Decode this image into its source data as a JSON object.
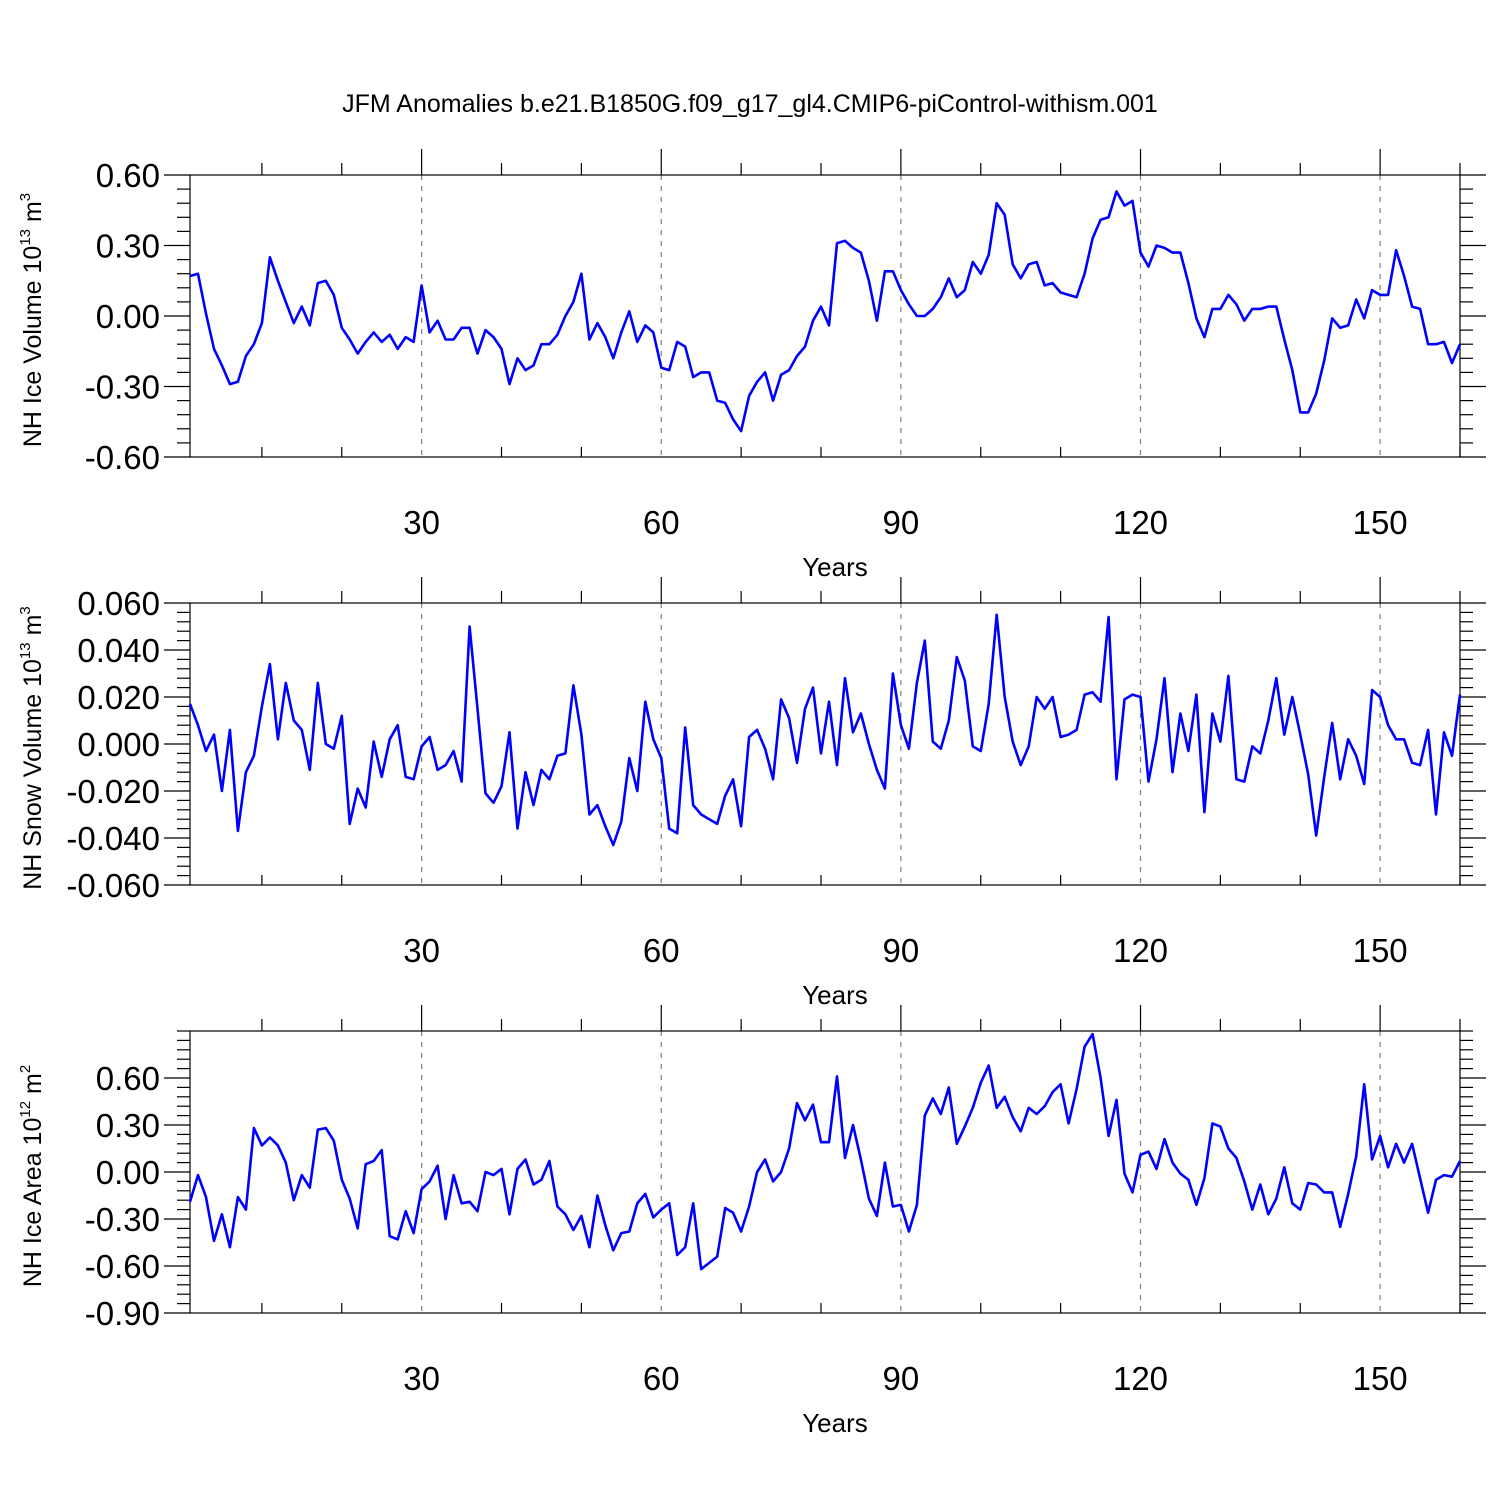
{
  "title": "JFM Anomalies b.e21.B1850G.f09_g17_gl4.CMIP6-piControl-withism.001",
  "colors": {
    "line": "#0000ff",
    "axis": "#000000",
    "grid": "#808080"
  },
  "chart_data": [
    {
      "type": "line",
      "name": "ice-volume",
      "ylabel_main": "NH Ice Volume 10",
      "ylabel_exp": "13",
      "ylabel_unit": " m",
      "ylabel_unit_exp": "3",
      "xlabel": "Years",
      "xlim": [
        1,
        160
      ],
      "ylim": [
        -0.6,
        0.6
      ],
      "xticks": [
        30,
        60,
        90,
        120,
        150
      ],
      "xtick_labels": [
        "30",
        "60",
        "90",
        "120",
        "150"
      ],
      "yticks": [
        -0.6,
        -0.3,
        0.0,
        0.3,
        0.6
      ],
      "ytick_labels": [
        "-0.60",
        "-0.30",
        "0.00",
        "0.30",
        "0.60"
      ],
      "yminor_step": 0.06,
      "values": [
        0.17,
        0.18,
        0.01,
        -0.14,
        -0.21,
        -0.29,
        -0.28,
        -0.17,
        -0.12,
        -0.03,
        0.25,
        0.15,
        0.06,
        -0.03,
        0.04,
        -0.04,
        0.14,
        0.15,
        0.09,
        -0.05,
        -0.1,
        -0.16,
        -0.11,
        -0.07,
        -0.11,
        -0.08,
        -0.14,
        -0.09,
        -0.11,
        0.13,
        -0.07,
        -0.02,
        -0.1,
        -0.1,
        -0.05,
        -0.05,
        -0.16,
        -0.06,
        -0.09,
        -0.14,
        -0.29,
        -0.18,
        -0.23,
        -0.21,
        -0.12,
        -0.12,
        -0.08,
        0.0,
        0.06,
        0.18,
        -0.1,
        -0.03,
        -0.09,
        -0.18,
        -0.07,
        0.02,
        -0.11,
        -0.04,
        -0.07,
        -0.22,
        -0.23,
        -0.11,
        -0.13,
        -0.26,
        -0.24,
        -0.24,
        -0.36,
        -0.37,
        -0.44,
        -0.49,
        -0.34,
        -0.28,
        -0.24,
        -0.36,
        -0.25,
        -0.23,
        -0.17,
        -0.13,
        -0.02,
        0.04,
        -0.04,
        0.31,
        0.32,
        0.29,
        0.27,
        0.15,
        -0.02,
        0.19,
        0.19,
        0.11,
        0.05,
        0.0,
        0.0,
        0.03,
        0.08,
        0.16,
        0.08,
        0.11,
        0.23,
        0.18,
        0.26,
        0.48,
        0.43,
        0.22,
        0.16,
        0.22,
        0.23,
        0.13,
        0.14,
        0.1,
        0.09,
        0.08,
        0.18,
        0.33,
        0.41,
        0.42,
        0.53,
        0.47,
        0.49,
        0.27,
        0.21,
        0.3,
        0.29,
        0.27,
        0.27,
        0.14,
        -0.01,
        -0.09,
        0.03,
        0.03,
        0.09,
        0.05,
        -0.02,
        0.03,
        0.03,
        0.04,
        0.04,
        -0.1,
        -0.23,
        -0.41,
        -0.41,
        -0.33,
        -0.19,
        -0.01,
        -0.05,
        -0.04,
        0.07,
        -0.01,
        0.11,
        0.09,
        0.09,
        0.28,
        0.17,
        0.04,
        0.03,
        -0.12,
        -0.12,
        -0.11,
        -0.2,
        -0.12
      ]
    },
    {
      "type": "line",
      "name": "snow-volume",
      "ylabel_main": "NH Snow Volume 10",
      "ylabel_exp": "13",
      "ylabel_unit": " m",
      "ylabel_unit_exp": "3",
      "xlabel": "Years",
      "xlim": [
        1,
        160
      ],
      "ylim": [
        -0.06,
        0.06
      ],
      "xticks": [
        30,
        60,
        90,
        120,
        150
      ],
      "xtick_labels": [
        "30",
        "60",
        "90",
        "120",
        "150"
      ],
      "yticks": [
        -0.06,
        -0.04,
        -0.02,
        0.0,
        0.02,
        0.04,
        0.06
      ],
      "ytick_labels": [
        "-0.060",
        "-0.040",
        "-0.020",
        "0.000",
        "0.020",
        "0.040",
        "0.060"
      ],
      "yminor_step": 0.004,
      "values": [
        0.017,
        0.008,
        -0.003,
        0.004,
        -0.02,
        0.006,
        -0.037,
        -0.012,
        -0.005,
        0.016,
        0.034,
        0.002,
        0.026,
        0.01,
        0.006,
        -0.011,
        0.026,
        0.0,
        -0.002,
        0.012,
        -0.034,
        -0.019,
        -0.027,
        0.001,
        -0.014,
        0.002,
        0.008,
        -0.014,
        -0.015,
        -0.001,
        0.003,
        -0.011,
        -0.009,
        -0.003,
        -0.016,
        0.05,
        0.015,
        -0.021,
        -0.025,
        -0.018,
        0.005,
        -0.036,
        -0.012,
        -0.026,
        -0.011,
        -0.015,
        -0.005,
        -0.004,
        0.025,
        0.004,
        -0.03,
        -0.026,
        -0.035,
        -0.043,
        -0.033,
        -0.006,
        -0.02,
        0.018,
        0.002,
        -0.006,
        -0.036,
        -0.038,
        0.007,
        -0.026,
        -0.03,
        -0.032,
        -0.034,
        -0.022,
        -0.015,
        -0.035,
        0.003,
        0.006,
        -0.002,
        -0.015,
        0.019,
        0.011,
        -0.008,
        0.015,
        0.024,
        -0.004,
        0.018,
        -0.009,
        0.028,
        0.005,
        0.013,
        0.0,
        -0.011,
        -0.019,
        0.03,
        0.008,
        -0.002,
        0.026,
        0.044,
        0.001,
        -0.002,
        0.01,
        0.037,
        0.027,
        -0.001,
        -0.003,
        0.017,
        0.055,
        0.02,
        0.001,
        -0.009,
        -0.001,
        0.02,
        0.015,
        0.02,
        0.003,
        0.004,
        0.006,
        0.021,
        0.022,
        0.018,
        0.054,
        -0.015,
        0.019,
        0.021,
        0.02,
        -0.016,
        0.002,
        0.028,
        -0.012,
        0.013,
        -0.003,
        0.021,
        -0.029,
        0.013,
        0.001,
        0.029,
        -0.015,
        -0.016,
        -0.001,
        -0.004,
        0.01,
        0.028,
        0.004,
        0.02,
        0.004,
        -0.013,
        -0.039,
        -0.014,
        0.009,
        -0.015,
        0.002,
        -0.005,
        -0.017,
        0.023,
        0.02,
        0.008,
        0.002,
        0.002,
        -0.008,
        -0.009,
        0.006,
        -0.03,
        0.005,
        -0.005,
        0.021
      ]
    },
    {
      "type": "line",
      "name": "ice-area",
      "ylabel_main": "NH Ice Area 10",
      "ylabel_exp": "12",
      "ylabel_unit": " m",
      "ylabel_unit_exp": "2",
      "xlabel": "Years",
      "xlim": [
        1,
        160
      ],
      "ylim": [
        -0.9,
        0.9
      ],
      "xticks": [
        30,
        60,
        90,
        120,
        150
      ],
      "xtick_labels": [
        "30",
        "60",
        "90",
        "120",
        "150"
      ],
      "yticks": [
        -0.9,
        -0.6,
        -0.3,
        0.0,
        0.3,
        0.6
      ],
      "ytick_labels": [
        "-0.90",
        "-0.60",
        "-0.30",
        "0.00",
        "0.30",
        "0.60"
      ],
      "yminor_step": 0.06,
      "values": [
        -0.19,
        -0.02,
        -0.16,
        -0.44,
        -0.27,
        -0.48,
        -0.16,
        -0.24,
        0.28,
        0.17,
        0.22,
        0.17,
        0.06,
        -0.18,
        -0.02,
        -0.1,
        0.27,
        0.28,
        0.2,
        -0.05,
        -0.17,
        -0.36,
        0.05,
        0.07,
        0.14,
        -0.41,
        -0.43,
        -0.25,
        -0.39,
        -0.11,
        -0.06,
        0.04,
        -0.3,
        -0.02,
        -0.2,
        -0.19,
        -0.25,
        0.0,
        -0.02,
        0.02,
        -0.27,
        0.02,
        0.08,
        -0.08,
        -0.05,
        0.07,
        -0.22,
        -0.27,
        -0.37,
        -0.28,
        -0.48,
        -0.15,
        -0.34,
        -0.5,
        -0.39,
        -0.38,
        -0.2,
        -0.14,
        -0.29,
        -0.24,
        -0.2,
        -0.53,
        -0.48,
        -0.2,
        -0.62,
        -0.58,
        -0.54,
        -0.23,
        -0.26,
        -0.38,
        -0.22,
        -0.0,
        0.08,
        -0.06,
        0.0,
        0.15,
        0.44,
        0.33,
        0.43,
        0.19,
        0.19,
        0.61,
        0.09,
        0.3,
        0.08,
        -0.17,
        -0.28,
        0.06,
        -0.22,
        -0.21,
        -0.38,
        -0.21,
        0.36,
        0.47,
        0.37,
        0.54,
        0.18,
        0.29,
        0.41,
        0.57,
        0.68,
        0.41,
        0.48,
        0.35,
        0.26,
        0.41,
        0.37,
        0.42,
        0.51,
        0.56,
        0.31,
        0.53,
        0.8,
        0.88,
        0.6,
        0.23,
        0.46,
        -0.01,
        -0.13,
        0.11,
        0.13,
        0.02,
        0.21,
        0.06,
        -0.01,
        -0.05,
        -0.21,
        -0.04,
        0.31,
        0.29,
        0.15,
        0.09,
        -0.06,
        -0.24,
        -0.08,
        -0.27,
        -0.17,
        0.03,
        -0.2,
        -0.24,
        -0.07,
        -0.08,
        -0.13,
        -0.13,
        -0.35,
        -0.14,
        0.1,
        0.56,
        0.08,
        0.23,
        0.03,
        0.18,
        0.06,
        0.18,
        -0.04,
        -0.26,
        -0.05,
        -0.02,
        -0.03,
        0.07
      ]
    }
  ]
}
